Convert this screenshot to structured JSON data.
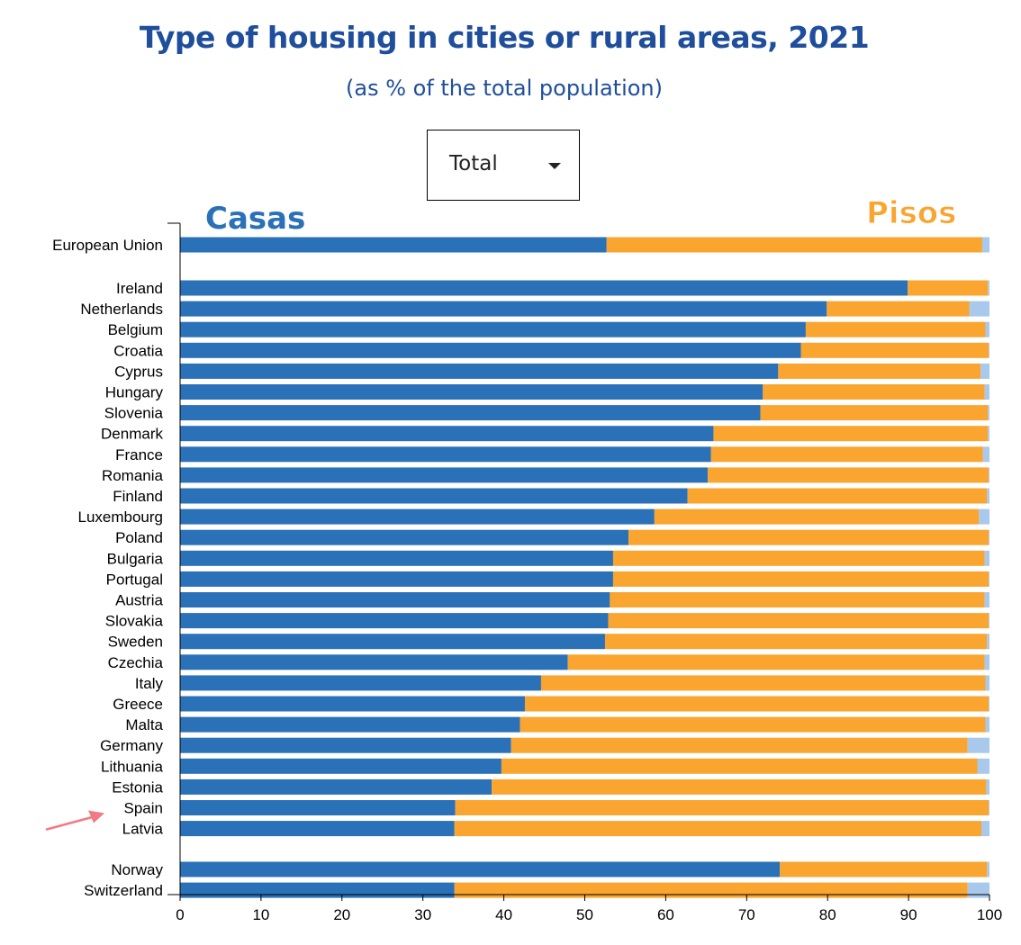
{
  "title": "Type of housing in cities or rural areas, 2021",
  "subtitle": "(as % of the total population)",
  "dropdown": {
    "selected": "Total"
  },
  "colors": {
    "houses": "#2a71b8",
    "flats": "#f9a530",
    "other": "#a9c9ec",
    "title": "#1f4e9c",
    "arrow": "#f07a85"
  },
  "chart_data": {
    "type": "bar",
    "orientation": "horizontal",
    "stacked": true,
    "xlim": [
      0,
      100
    ],
    "xticks": [
      "0",
      "10",
      "20",
      "30",
      "40",
      "50",
      "60",
      "70",
      "80",
      "90",
      "100"
    ],
    "annotations": {
      "houses": "Casas",
      "flats": "Pisos"
    },
    "highlight": "Spain",
    "groups": [
      {
        "rows": [
          {
            "label": "European Union",
            "houses": 52.7,
            "flats": 46.4,
            "other": 0.9
          }
        ]
      },
      {
        "rows": [
          {
            "label": "Ireland",
            "houses": 89.9,
            "flats": 9.9,
            "other": 0.2
          },
          {
            "label": "Netherlands",
            "houses": 79.9,
            "flats": 17.6,
            "other": 2.5
          },
          {
            "label": "Belgium",
            "houses": 77.3,
            "flats": 22.2,
            "other": 0.5
          },
          {
            "label": "Croatia",
            "houses": 76.7,
            "flats": 23.2,
            "other": 0.1
          },
          {
            "label": "Cyprus",
            "houses": 73.9,
            "flats": 25.0,
            "other": 1.1
          },
          {
            "label": "Hungary",
            "houses": 72.0,
            "flats": 27.4,
            "other": 0.6
          },
          {
            "label": "Slovenia",
            "houses": 71.7,
            "flats": 28.1,
            "other": 0.2
          },
          {
            "label": "Denmark",
            "houses": 65.9,
            "flats": 33.9,
            "other": 0.2
          },
          {
            "label": "France",
            "houses": 65.6,
            "flats": 33.6,
            "other": 0.8
          },
          {
            "label": "Romania",
            "houses": 65.2,
            "flats": 34.7,
            "other": 0.1
          },
          {
            "label": "Finland",
            "houses": 62.7,
            "flats": 37.0,
            "other": 0.3
          },
          {
            "label": "Luxembourg",
            "houses": 58.6,
            "flats": 40.1,
            "other": 1.3
          },
          {
            "label": "Poland",
            "houses": 55.4,
            "flats": 44.5,
            "other": 0.1
          },
          {
            "label": "Bulgaria",
            "houses": 53.5,
            "flats": 45.9,
            "other": 0.6
          },
          {
            "label": "Portugal",
            "houses": 53.5,
            "flats": 46.4,
            "other": 0.1
          },
          {
            "label": "Austria",
            "houses": 53.1,
            "flats": 46.3,
            "other": 0.6
          },
          {
            "label": "Slovakia",
            "houses": 52.9,
            "flats": 47.0,
            "other": 0.1
          },
          {
            "label": "Sweden",
            "houses": 52.5,
            "flats": 47.2,
            "other": 0.3
          },
          {
            "label": "Czechia",
            "houses": 47.9,
            "flats": 51.5,
            "other": 0.6
          },
          {
            "label": "Italy",
            "houses": 44.6,
            "flats": 54.9,
            "other": 0.5
          },
          {
            "label": "Greece",
            "houses": 42.6,
            "flats": 57.3,
            "other": 0.1
          },
          {
            "label": "Malta",
            "houses": 42.0,
            "flats": 57.5,
            "other": 0.5
          },
          {
            "label": "Germany",
            "houses": 40.9,
            "flats": 56.4,
            "other": 2.7
          },
          {
            "label": "Lithuania",
            "houses": 39.7,
            "flats": 58.8,
            "other": 1.5
          },
          {
            "label": "Estonia",
            "houses": 38.5,
            "flats": 61.1,
            "other": 0.4
          },
          {
            "label": "Spain",
            "houses": 34.0,
            "flats": 65.9,
            "other": 0.1
          },
          {
            "label": "Latvia",
            "houses": 33.9,
            "flats": 65.1,
            "other": 1.0
          }
        ]
      },
      {
        "rows": [
          {
            "label": "Norway",
            "houses": 74.1,
            "flats": 25.6,
            "other": 0.3
          },
          {
            "label": "Switzerland",
            "houses": 33.9,
            "flats": 63.4,
            "other": 2.7
          }
        ]
      }
    ]
  }
}
